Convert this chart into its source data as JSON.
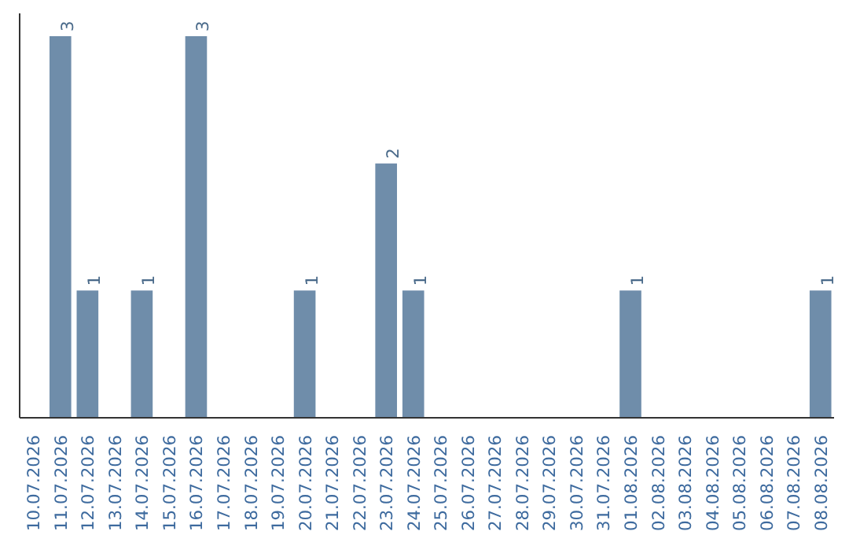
{
  "chart_data": {
    "type": "bar",
    "categories": [
      "10.07.2026",
      "11.07.2026",
      "12.07.2026",
      "13.07.2026",
      "14.07.2026",
      "15.07.2026",
      "16.07.2026",
      "17.07.2026",
      "18.07.2026",
      "19.07.2026",
      "20.07.2026",
      "21.07.2026",
      "22.07.2026",
      "23.07.2026",
      "24.07.2026",
      "25.07.2026",
      "26.07.2026",
      "27.07.2026",
      "28.07.2026",
      "29.07.2026",
      "30.07.2026",
      "31.07.2026",
      "01.08.2026",
      "02.08.2026",
      "03.08.2026",
      "04.08.2026",
      "05.08.2026",
      "06.08.2026",
      "07.08.2026",
      "08.08.2026"
    ],
    "values": [
      null,
      3,
      1,
      null,
      1,
      null,
      3,
      null,
      null,
      null,
      1,
      null,
      null,
      2,
      1,
      null,
      null,
      null,
      null,
      null,
      null,
      null,
      1,
      null,
      null,
      null,
      null,
      null,
      null,
      1
    ],
    "color": "#6f8daa",
    "data_labels": true,
    "grid": false,
    "tick_labels": "x"
  }
}
